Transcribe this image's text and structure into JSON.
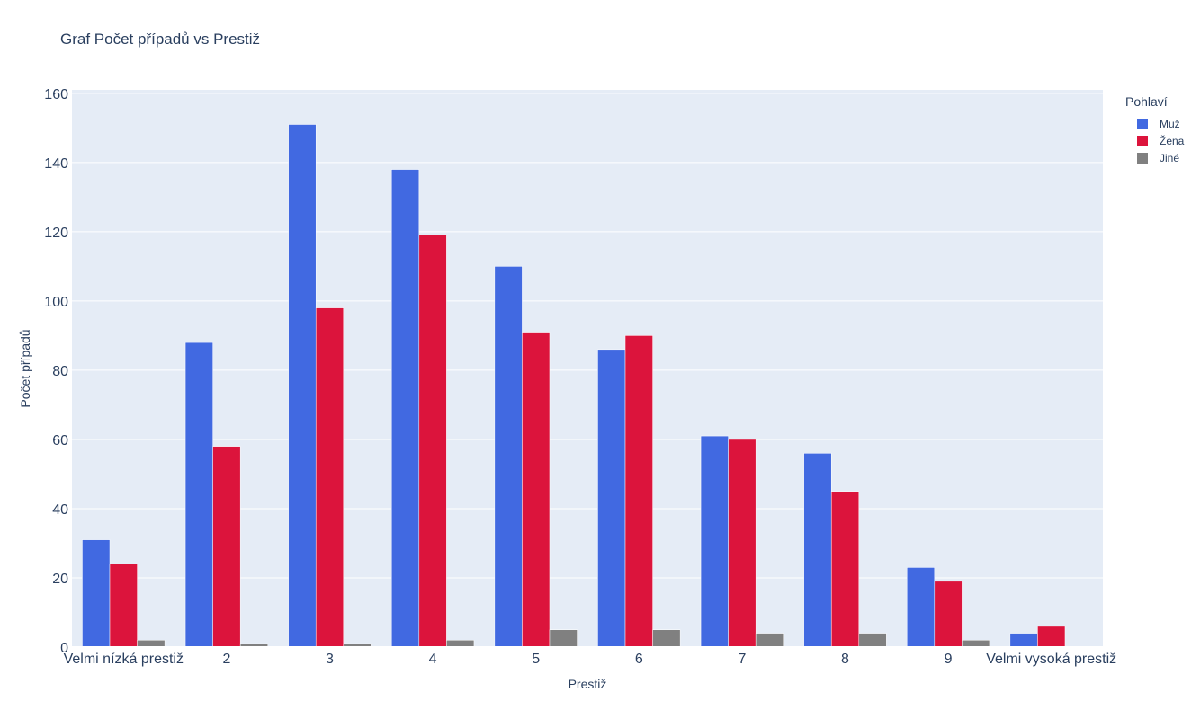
{
  "chart_data": {
    "type": "bar",
    "title": "Graf Počet případů vs Prestiž",
    "xlabel": "Prestiž",
    "ylabel": "Počet případů",
    "categories": [
      "Velmi nízká prestiž",
      "2",
      "3",
      "4",
      "5",
      "6",
      "7",
      "8",
      "9",
      "Velmi vysoká prestiž"
    ],
    "ylim": [
      0,
      161
    ],
    "yticks": [
      0,
      20,
      40,
      60,
      80,
      100,
      120,
      140,
      160
    ],
    "grid": true,
    "barmode": "group",
    "legend": {
      "title": "Pohlaví",
      "position": "top-right"
    },
    "series": [
      {
        "name": "Muž",
        "color": "#4169e1",
        "values": [
          31,
          88,
          151,
          138,
          110,
          86,
          61,
          56,
          23,
          4
        ]
      },
      {
        "name": "Žena",
        "color": "#dc143c",
        "values": [
          24,
          58,
          98,
          119,
          91,
          90,
          60,
          45,
          19,
          6
        ]
      },
      {
        "name": "Jiné",
        "color": "#808080",
        "values": [
          2,
          1,
          1,
          2,
          5,
          5,
          4,
          4,
          2,
          0
        ]
      }
    ],
    "plot_bg": "#e5ecf6"
  }
}
